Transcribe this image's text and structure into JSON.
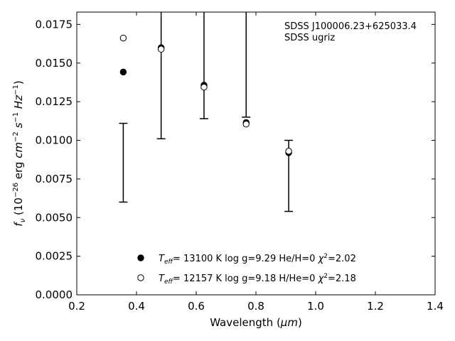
{
  "chart_data": {
    "type": "scatter",
    "xlabel_prefix": "Wavelength (",
    "xlabel_unit": "μm",
    "xlabel_suffix": ")",
    "ylabel": "f_ν (10^−26 erg cm^−2 s^−1 Hz^−1)",
    "xlim": [
      0.2,
      1.4
    ],
    "ylim": [
      0.0,
      0.0183
    ],
    "xticks": [
      0.2,
      0.4,
      0.6,
      0.8,
      1.0,
      1.2,
      1.4
    ],
    "xtick_labels": [
      "0.2",
      "0.4",
      "0.6",
      "0.8",
      "1.0",
      "1.2",
      "1.4"
    ],
    "yticks": [
      0.0,
      0.0025,
      0.005,
      0.0075,
      0.01,
      0.0125,
      0.015,
      0.0175
    ],
    "ytick_labels": [
      "0.0000",
      "0.0025",
      "0.0050",
      "0.0075",
      "0.0100",
      "0.0125",
      "0.0150",
      "0.0175"
    ],
    "grid": false,
    "legend_placement": "bottom-center",
    "annotation": [
      "SDSS J100006.23+625033.4",
      "SDSS ugriz"
    ],
    "observed": {
      "x": [
        0.3557,
        0.4825,
        0.6261,
        0.7672,
        0.9097
      ],
      "y_low": [
        0.006,
        0.0101,
        0.0114,
        0.0115,
        0.0054
      ],
      "y_high": [
        0.0111,
        0.0183,
        0.0183,
        0.0183,
        0.01
      ]
    },
    "series": [
      {
        "name": "Teff= 13100 K  log g=9.29  He/H=0  χ2=2.02",
        "marker": "filled",
        "x": [
          0.3557,
          0.4825,
          0.6261,
          0.7672,
          0.9097
        ],
        "y": [
          0.01442,
          0.016,
          0.01357,
          0.01115,
          0.0092
        ]
      },
      {
        "name": "Teff= 12157 K  log g=9.18  H/He=0  χ2=2.18",
        "marker": "open",
        "x": [
          0.3557,
          0.4825,
          0.6261,
          0.7672,
          0.9097
        ],
        "y": [
          0.01662,
          0.0159,
          0.01344,
          0.01105,
          0.0093
        ]
      }
    ],
    "legend": [
      {
        "teff_label": "T",
        "teff_sub": "eff",
        "text": "= 13100 K  log g=9.29  He/H=0  ",
        "chi": "χ",
        "chi_sup": "2",
        "chi_val": "=2.02"
      },
      {
        "teff_label": "T",
        "teff_sub": "eff",
        "text": "= 12157 K  log g=9.18  H/He=0  ",
        "chi": "χ",
        "chi_sup": "2",
        "chi_val": "=2.18"
      }
    ]
  }
}
